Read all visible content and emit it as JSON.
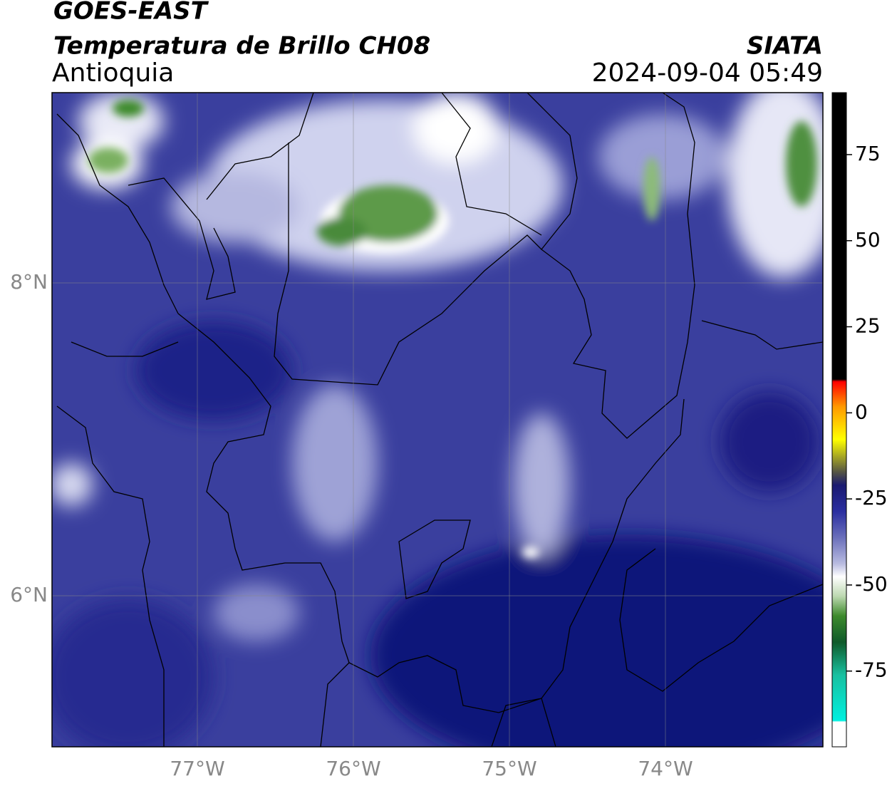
{
  "header": {
    "satellite": "GOES-EAST",
    "title": "Temperatura de Brillo CH08",
    "region": "Antioquia",
    "agency": "SIATA",
    "datetime": "2024-09-04 05:49"
  },
  "map": {
    "lat_labels": [
      "8°N",
      "6°N"
    ],
    "lon_labels": [
      "77°W",
      "76°W",
      "75°W",
      "74°W"
    ]
  },
  "colorbar": {
    "lim": [
      -97,
      93
    ],
    "ticks": [
      75,
      50,
      25,
      0,
      -25,
      -50,
      -75
    ]
  }
}
